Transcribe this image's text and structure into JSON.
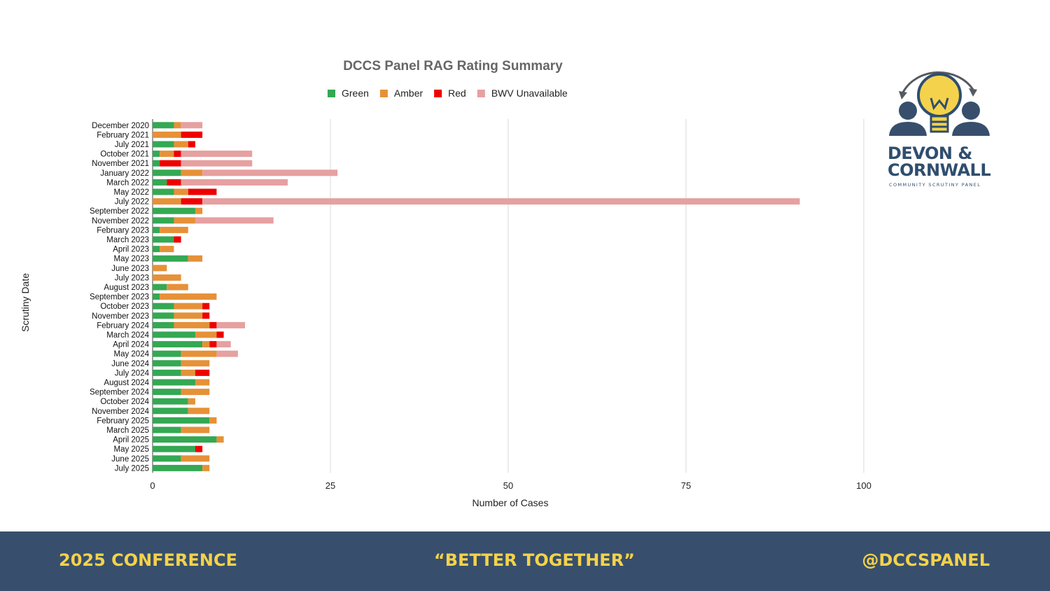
{
  "chart_data": {
    "type": "bar",
    "orientation": "horizontal",
    "stacked": true,
    "title": "DCCS Panel RAG Rating Summary",
    "xlabel": "Number of Cases",
    "ylabel": "Scrutiny Date",
    "xlim": [
      0,
      100
    ],
    "xticks": [
      0,
      25,
      50,
      75,
      100
    ],
    "grid": "vertical",
    "legend_position": "top",
    "categories": [
      "December 2020",
      "February 2021",
      "July 2021",
      "October 2021",
      "November 2021",
      "January 2022",
      "March 2022",
      "May 2022",
      "July 2022",
      "September 2022",
      "November 2022",
      "February 2023",
      "March 2023",
      "April 2023",
      "May 2023",
      "June 2023",
      "July 2023",
      "August 2023",
      "September 2023",
      "October 2023",
      "November 2023",
      "February 2024",
      "March 2024",
      "April 2024",
      "May 2024",
      "June 2024",
      "July 2024",
      "August 2024",
      "September 2024",
      "October 2024",
      "November 2024",
      "February 2025",
      "March 2025",
      "April 2025",
      "May 2025",
      "June 2025",
      "July 2025"
    ],
    "series": [
      {
        "name": "Green",
        "color": "#34a853",
        "values": [
          3,
          0,
          3,
          1,
          1,
          4,
          2,
          3,
          0,
          6,
          3,
          1,
          3,
          1,
          5,
          0,
          0,
          2,
          1,
          3,
          3,
          3,
          6,
          7,
          4,
          4,
          4,
          6,
          4,
          5,
          5,
          8,
          4,
          9,
          6,
          4,
          7
        ]
      },
      {
        "name": "Amber",
        "color": "#e69138",
        "values": [
          1,
          4,
          2,
          2,
          0,
          3,
          0,
          2,
          4,
          1,
          3,
          4,
          0,
          2,
          2,
          2,
          4,
          3,
          8,
          4,
          4,
          5,
          3,
          1,
          5,
          4,
          2,
          2,
          4,
          1,
          3,
          1,
          4,
          1,
          0,
          4,
          1
        ]
      },
      {
        "name": "Red",
        "color": "#ee0000",
        "values": [
          0,
          3,
          1,
          1,
          3,
          0,
          2,
          4,
          3,
          0,
          0,
          0,
          1,
          0,
          0,
          0,
          0,
          0,
          0,
          1,
          1,
          1,
          1,
          1,
          0,
          0,
          2,
          0,
          0,
          0,
          0,
          0,
          0,
          0,
          1,
          0,
          0
        ]
      },
      {
        "name": "BWV Unavailable",
        "color": "#e6a0a0",
        "values": [
          3,
          0,
          0,
          10,
          10,
          19,
          15,
          0,
          84,
          0,
          11,
          0,
          0,
          0,
          0,
          0,
          0,
          0,
          0,
          0,
          0,
          4,
          0,
          2,
          3,
          0,
          0,
          0,
          0,
          0,
          0,
          0,
          0,
          0,
          0,
          0,
          0
        ]
      }
    ]
  },
  "logo": {
    "line1": "DEVON &",
    "line2": "CORNWALL",
    "subtitle": "COMMUNITY SCRUTINY PANEL",
    "icon": "lightbulb-people-icon"
  },
  "footer": {
    "left": "2025 CONFERENCE",
    "center": "“BETTER TOGETHER”",
    "right": "@DCCSPANEL",
    "background": "#374f6c",
    "text_color": "#f5d24b"
  }
}
